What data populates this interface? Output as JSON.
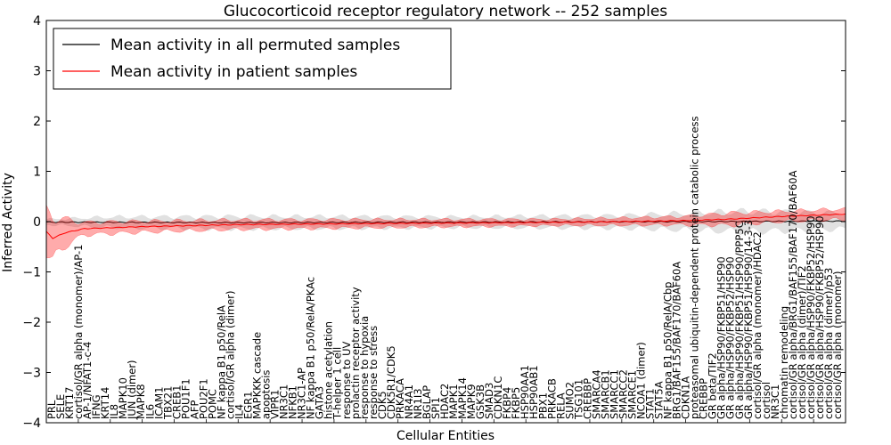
{
  "chart_data": {
    "type": "line",
    "title": "Glucocorticoid receptor regulatory network -- 252 samples",
    "xlabel": "Cellular Entities",
    "ylabel": "Inferred Activity",
    "ylim": [
      -4,
      4
    ],
    "yticks": [
      -4,
      -3,
      -2,
      -1,
      0,
      1,
      2,
      3,
      4
    ],
    "grid": false,
    "legend_position": "top-left",
    "n_points": 252,
    "entity_labels": [
      "PRL",
      "SELE",
      "KRT17",
      "cortisol/GR alpha (monomer)/AP-1",
      "AP-1/NFAT1-c-4",
      "IFNG",
      "KRT14",
      "IL8",
      "MAPK10",
      "JUN (dimer)",
      "MAPK8",
      "IL6",
      "ICAM1",
      "TBX21",
      "CREB1",
      "POU1F1",
      "AFP",
      "POU2F1",
      "POMC",
      "NF kappa B1 p50/RelA",
      "cortisol/GR alpha (dimer)",
      "IL4",
      "EGR1",
      "MAPKKK cascade",
      "apoptosis",
      "VIPR1",
      "NR3C1",
      "NFKB1",
      "NR3C1-AP",
      "NF kappa B1 p50/RelA/PKAc",
      "GATA3",
      "histone acetylation",
      "T-helper 1 cell",
      "response to UV",
      "prolactin receptor activity",
      "response to hypoxia",
      "response to stress",
      "CDK5",
      "CDK5R1/CDK5",
      "PRKACA",
      "NR4A1",
      "NR1I3",
      "BGLAP",
      "SPI1",
      "HDAC2",
      "MAPK1",
      "MAPK14",
      "MAPK9",
      "GSK3B",
      "SMAD3",
      "CDKN1C",
      "FKBP4",
      "FKBP5",
      "HSP90AA1",
      "HSP90AB1",
      "PBX1",
      "PRKACB",
      "RELA",
      "SUMO2",
      "TSG101",
      "CREBBP",
      "SMARCA4",
      "SMARCB1",
      "SMARCC1",
      "SMARCC2",
      "SMARCE1",
      "NCOA1 (dimer)",
      "STAT1",
      "STAT5A",
      "NF kappa B1 p50/RelA/Cbp",
      "BRG1/BAF155/BAF170/BAF60A",
      "CDKN1A",
      "proteasomal ubiquitin-dependent protein catabolic process",
      "CREBBP",
      "GR beta/TIF2",
      "GR alpha/HSP90/FKBP51/HSP90",
      "GR alpha/HSP90/FKBP52/HSP90",
      "GR alpha/HSP90/FKBP51/HSP90/PPP5C",
      "GR alpha/HSP90/FKBP51/HSP90/14-3-3",
      "cortisol/GR alpha (monomer)/HDAC2",
      "cortisol",
      "NR3C1",
      "chromatin remodeling",
      "cortisol/GR alpha/BRG1/BAF155/BAF170/BAF60A",
      "cortisol/GR alpha (dimer)/TIF2",
      "cortisol/GR alpha/HSP90/FKBP52/HSP90",
      "cortisol/GR alpha/HSP90/FKBP52/HSP90",
      "cortisol/GR alpha (dimer)/p53",
      "cortisol/GR alpha (monomer)"
    ],
    "series": [
      {
        "name": "Mean activity in all permuted samples",
        "color": "#000000",
        "band_color": "#c8c8c8",
        "mean_knots": [
          [
            0,
            -0.01
          ],
          [
            60,
            -0.02
          ],
          [
            130,
            -0.01
          ],
          [
            200,
            0.0
          ],
          [
            251,
            0.01
          ]
        ],
        "band_knots": [
          [
            0,
            0.05
          ],
          [
            20,
            0.1
          ],
          [
            60,
            0.12
          ],
          [
            130,
            0.1
          ],
          [
            180,
            0.12
          ],
          [
            220,
            0.2
          ],
          [
            251,
            0.15
          ]
        ]
      },
      {
        "name": "Mean activity in patient samples",
        "color": "#ff0000",
        "band_color": "#ff0000",
        "mean_knots": [
          [
            0,
            -0.2
          ],
          [
            2,
            -0.33
          ],
          [
            6,
            -0.22
          ],
          [
            12,
            -0.14
          ],
          [
            30,
            -0.1
          ],
          [
            60,
            -0.06
          ],
          [
            100,
            -0.04
          ],
          [
            150,
            -0.02
          ],
          [
            180,
            0.0
          ],
          [
            200,
            0.02
          ],
          [
            215,
            0.05
          ],
          [
            230,
            0.1
          ],
          [
            251,
            0.15
          ]
        ],
        "band_knots": [
          [
            0,
            0.4
          ],
          [
            2,
            0.45
          ],
          [
            6,
            0.25
          ],
          [
            12,
            0.12
          ],
          [
            40,
            0.1
          ],
          [
            100,
            0.08
          ],
          [
            160,
            0.06
          ],
          [
            200,
            0.08
          ],
          [
            215,
            0.12
          ],
          [
            230,
            0.1
          ],
          [
            251,
            0.1
          ]
        ]
      }
    ]
  }
}
